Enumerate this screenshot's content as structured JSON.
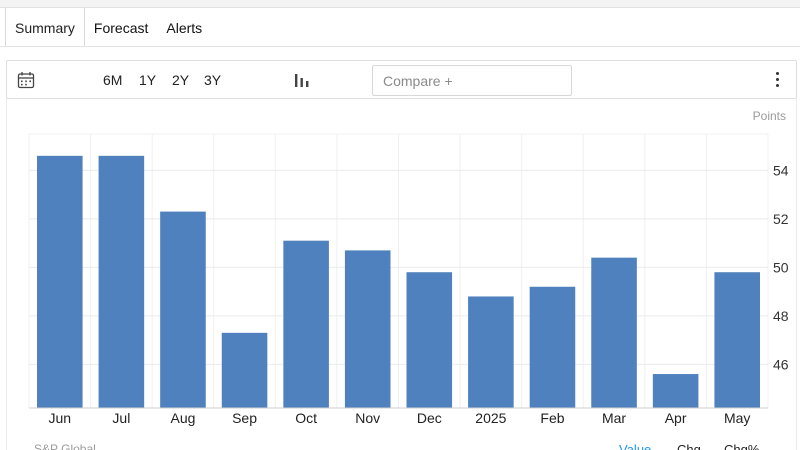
{
  "tabs": [
    {
      "label": "Summary",
      "active": true
    },
    {
      "label": "Forecast",
      "active": false
    },
    {
      "label": "Alerts",
      "active": false
    }
  ],
  "toolbar": {
    "calendar_icon": "calendar-icon",
    "ranges": [
      "6M",
      "1Y",
      "2Y",
      "3Y"
    ],
    "chart_type_icon": "bar-chart-icon",
    "compare_placeholder": "Compare +",
    "menu_icon": "vertical-dots-icon"
  },
  "chart_data": {
    "type": "bar",
    "unit_label": "Points",
    "categories": [
      "Jun",
      "Jul",
      "Aug",
      "Sep",
      "Oct",
      "Nov",
      "Dec",
      "2025",
      "Feb",
      "Mar",
      "Apr",
      "May"
    ],
    "values": [
      54.6,
      54.6,
      52.3,
      47.3,
      51.1,
      50.7,
      49.8,
      48.8,
      49.2,
      50.4,
      45.6,
      49.8
    ],
    "ylim": [
      44.2,
      55.5
    ],
    "yticks": [
      46,
      48,
      50,
      52,
      54
    ],
    "y_axis_side": "right",
    "grid": true,
    "bar_color": "#4e81bd"
  },
  "footer": {
    "source": "S&P Global",
    "buttons": [
      "Value",
      "Chg",
      "Chg%"
    ],
    "active_color": "#2196f3"
  }
}
